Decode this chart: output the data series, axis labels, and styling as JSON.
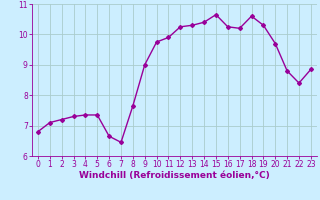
{
  "x": [
    0,
    1,
    2,
    3,
    4,
    5,
    6,
    7,
    8,
    9,
    10,
    11,
    12,
    13,
    14,
    15,
    16,
    17,
    18,
    19,
    20,
    21,
    22,
    23
  ],
  "y": [
    6.8,
    7.1,
    7.2,
    7.3,
    7.35,
    7.35,
    6.65,
    6.45,
    7.65,
    9.0,
    9.75,
    9.9,
    10.25,
    10.3,
    10.4,
    10.65,
    10.25,
    10.2,
    10.6,
    10.3,
    9.7,
    8.8,
    8.4,
    8.85
  ],
  "line_color": "#990099",
  "marker": "D",
  "marker_size": 2,
  "line_width": 1.0,
  "background_color": "#cceeff",
  "grid_color": "#aacccc",
  "xlabel": "Windchill (Refroidissement éolien,°C)",
  "xlabel_color": "#990099",
  "tick_color": "#990099",
  "ylim": [
    6,
    11
  ],
  "xlim": [
    -0.5,
    23.5
  ],
  "yticks": [
    6,
    7,
    8,
    9,
    10,
    11
  ],
  "xticks": [
    0,
    1,
    2,
    3,
    4,
    5,
    6,
    7,
    8,
    9,
    10,
    11,
    12,
    13,
    14,
    15,
    16,
    17,
    18,
    19,
    20,
    21,
    22,
    23
  ],
  "tick_fontsize": 5.5,
  "xlabel_fontsize": 6.5
}
